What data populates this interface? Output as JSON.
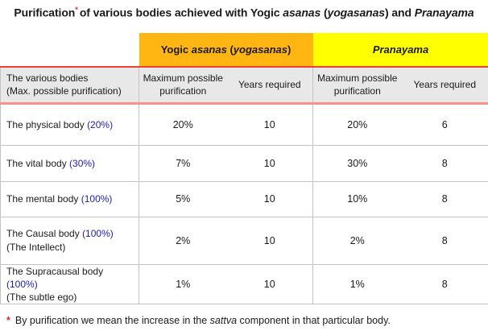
{
  "title": {
    "segments": [
      {
        "t": "Purification"
      },
      {
        "t": "*",
        "sup": true,
        "c": "red"
      },
      {
        "t": "of various bodies achieved with Yogic "
      },
      {
        "t": "asanas",
        "i": true
      },
      {
        "t": " ("
      },
      {
        "t": "yogasanas",
        "i": true
      },
      {
        "t": ") and "
      },
      {
        "t": "Pranayama",
        "i": true
      }
    ]
  },
  "table": {
    "group_headers": [
      {
        "name": "yogic-asanas",
        "bg": "#ffb612",
        "segments": [
          {
            "t": "Yogic "
          },
          {
            "t": "asanas",
            "i": true
          },
          {
            "t": " ("
          },
          {
            "t": "yogasanas",
            "i": true
          },
          {
            "t": ")"
          }
        ]
      },
      {
        "name": "pranayama",
        "bg": "#ffff00",
        "segments": [
          {
            "t": "Pranayama",
            "i": true
          }
        ]
      }
    ],
    "row_header": {
      "segments": [
        {
          "t": "The various bodies"
        },
        {
          "br": true
        },
        {
          "t": "(Max. possible purification)"
        }
      ]
    },
    "col_headers": [
      "Maximum possible purification",
      "Years required",
      "Maximum possible purification",
      "Years required"
    ],
    "rows": [
      {
        "label": {
          "segments": [
            {
              "t": "The physical body "
            },
            {
              "t": "(20%)",
              "c": "blue"
            }
          ]
        },
        "values": [
          "20%",
          "10",
          "20%",
          "6"
        ]
      },
      {
        "label": {
          "segments": [
            {
              "t": "The vital body "
            },
            {
              "t": "(30%)",
              "c": "blue"
            }
          ]
        },
        "values": [
          "7%",
          "10",
          "30%",
          "8"
        ]
      },
      {
        "label": {
          "segments": [
            {
              "t": "The mental body "
            },
            {
              "t": "(100%)",
              "c": "blue"
            }
          ]
        },
        "values": [
          "5%",
          "10",
          "10%",
          "8"
        ]
      },
      {
        "label": {
          "segments": [
            {
              "t": "The Causal body "
            },
            {
              "t": "(100%)",
              "c": "blue"
            },
            {
              "br": true
            },
            {
              "t": "(The Intellect)"
            }
          ]
        },
        "values": [
          "2%",
          "10",
          "2%",
          "8"
        ]
      },
      {
        "label": {
          "segments": [
            {
              "t": "The Supracausal body "
            },
            {
              "t": "(100%)",
              "c": "blue"
            },
            {
              "br": true
            },
            {
              "t": "(The subtle ego)"
            }
          ]
        },
        "values": [
          "1%",
          "10",
          "1%",
          "8"
        ]
      }
    ]
  },
  "footnote": {
    "segments": [
      {
        "t": "*",
        "c": "red"
      },
      {
        "t": "By purification we mean the increase in the "
      },
      {
        "t": "sattva",
        "i": true
      },
      {
        "t": " component in that particular body."
      }
    ]
  },
  "colors": {
    "yogic_header_bg": "#ffb612",
    "pranayama_header_bg": "#ffff00",
    "header_divider_red": "#ee4135",
    "header_divider_salmon": "#f5928d",
    "subheader_bg": "#e8e8e8",
    "cell_border": "#c3c3c3",
    "percentage_blue": "#1f1caf",
    "asterisk_red": "#e8262a"
  }
}
